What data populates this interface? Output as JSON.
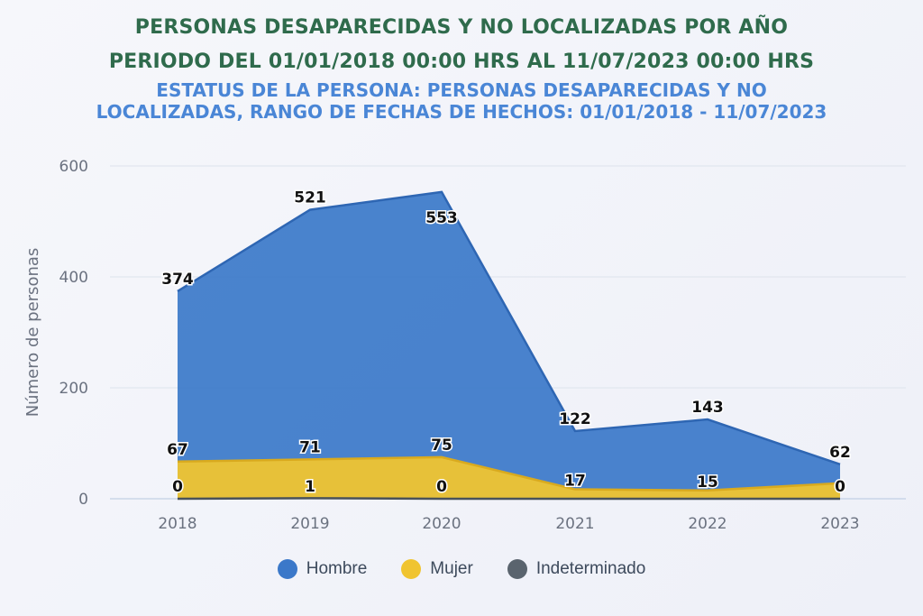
{
  "chart_data": {
    "type": "area",
    "title": "PERSONAS DESAPARECIDAS Y NO LOCALIZADAS POR AÑO",
    "title_line2": "PERIODO DEL 01/01/2018 00:00 HRS AL 11/07/2023 00:00 HRS",
    "subtitle": "ESTATUS DE LA PERSONA: PERSONAS DESAPARECIDAS Y NO LOCALIZADAS, RANGO DE FECHAS DE HECHOS: 01/01/2018 - 11/07/2023",
    "ylabel": "Número de personas",
    "xlabel": "",
    "categories": [
      "2018",
      "2019",
      "2020",
      "2021",
      "2022",
      "2023"
    ],
    "ylim": [
      0,
      600
    ],
    "yticks": [
      "0",
      "200",
      "400",
      "600"
    ],
    "grid": true,
    "legend_position": "bottom",
    "series": [
      {
        "name": "Hombre",
        "color": "#3b78c9",
        "values": [
          374,
          521,
          553,
          122,
          143,
          62
        ],
        "labels": [
          "374",
          "521",
          "553",
          "122",
          "143",
          "62"
        ]
      },
      {
        "name": "Mujer",
        "color": "#f0c430",
        "values": [
          67,
          71,
          75,
          17,
          15,
          28
        ],
        "labels": [
          "67",
          "71",
          "75",
          "17",
          "15",
          ""
        ]
      },
      {
        "name": "Indeterminado",
        "color": "#5a646e",
        "values": [
          0,
          1,
          0,
          0,
          0,
          0
        ],
        "labels": [
          "0",
          "1",
          "0",
          "",
          "",
          "0"
        ]
      }
    ]
  }
}
